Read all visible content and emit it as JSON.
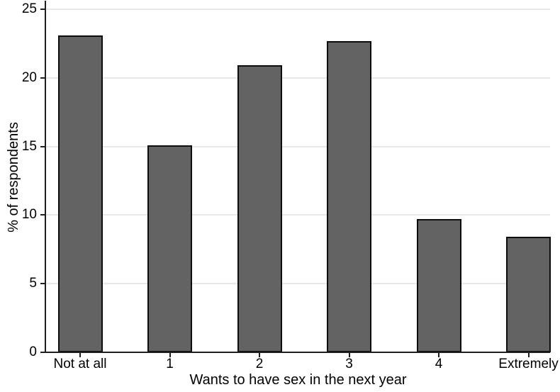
{
  "figure": {
    "background": "#ffffff"
  },
  "chart_data": {
    "type": "bar",
    "title": "",
    "xlabel": "Wants to have sex in the next year",
    "ylabel": "% of respondents",
    "categories": [
      "Not at all",
      "1",
      "2",
      "3",
      "4",
      "Extremely"
    ],
    "values": [
      23.1,
      15.1,
      20.9,
      22.7,
      9.7,
      8.4
    ],
    "ylim": [
      0,
      25
    ],
    "yticks": [
      0,
      5,
      10,
      15,
      20,
      25
    ],
    "grid": "horizontal-light",
    "legend": "none",
    "bar_color": "#636363",
    "bar_border_color": "#0d0d0d",
    "grid_color": "#e8e8e8",
    "axis_color": "#1f1f1f",
    "text_color": "#000000"
  }
}
